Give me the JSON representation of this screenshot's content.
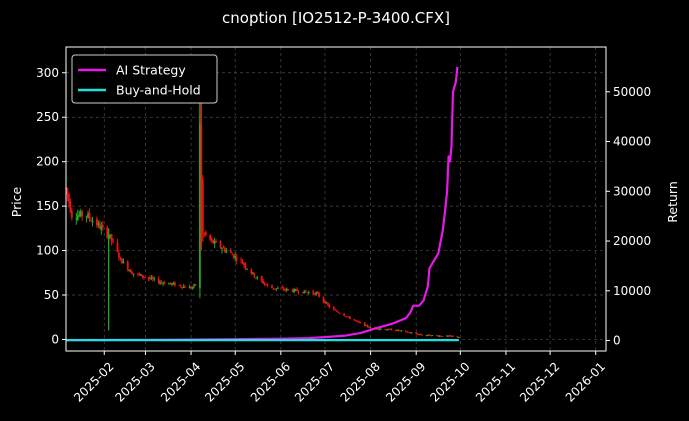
{
  "chart_data": {
    "type": "line",
    "title": "cnoption [IO2512-P-3400.CFX]",
    "ylabel_left": "Price",
    "ylabel_right": "Return",
    "x_ticks": [
      "2025-02",
      "2025-03",
      "2025-04",
      "2025-05",
      "2025-06",
      "2025-07",
      "2025-08",
      "2025-09",
      "2025-10",
      "2025-11",
      "2025-12",
      "2026-01"
    ],
    "x_range": [
      "2025-01-06",
      "2026-01-08"
    ],
    "y_left_ticks": [
      0,
      50,
      100,
      150,
      200,
      250,
      300
    ],
    "y_left_range": [
      -13,
      329
    ],
    "y_right_ticks": [
      0,
      10000,
      20000,
      30000,
      40000,
      50000
    ],
    "y_right_range": [
      -2100,
      59000
    ],
    "grid": true,
    "legend_position": "top-left",
    "series": [
      {
        "name": "AI Strategy",
        "color": "#e619e6",
        "axis": "right",
        "points": [
          [
            "2025-01-06",
            100
          ],
          [
            "2025-02-01",
            120
          ],
          [
            "2025-03-01",
            150
          ],
          [
            "2025-04-01",
            200
          ],
          [
            "2025-05-01",
            280
          ],
          [
            "2025-06-01",
            380
          ],
          [
            "2025-06-20",
            500
          ],
          [
            "2025-07-01",
            700
          ],
          [
            "2025-07-15",
            1000
          ],
          [
            "2025-07-25",
            1500
          ],
          [
            "2025-08-05",
            2500
          ],
          [
            "2025-08-15",
            3300
          ],
          [
            "2025-08-25",
            4500
          ],
          [
            "2025-08-28",
            5600
          ],
          [
            "2025-08-30",
            7000
          ],
          [
            "2025-09-03",
            7000
          ],
          [
            "2025-09-06",
            8000
          ],
          [
            "2025-09-09",
            11000
          ],
          [
            "2025-09-10",
            14500
          ],
          [
            "2025-09-13",
            16000
          ],
          [
            "2025-09-16",
            17500
          ],
          [
            "2025-09-18",
            20500
          ],
          [
            "2025-09-19",
            22000
          ],
          [
            "2025-09-21",
            27000
          ],
          [
            "2025-09-22",
            30000
          ],
          [
            "2025-09-23",
            37000
          ],
          [
            "2025-09-24",
            36000
          ],
          [
            "2025-09-25",
            39000
          ],
          [
            "2025-09-26",
            50000
          ],
          [
            "2025-09-28",
            52000
          ],
          [
            "2025-09-29",
            55000
          ]
        ]
      },
      {
        "name": "Buy-and-Hold",
        "color": "#1fe0e0",
        "axis": "right",
        "points": [
          [
            "2025-01-06",
            100
          ],
          [
            "2025-09-30",
            90
          ]
        ]
      }
    ],
    "candlesticks_note_colors": {
      "up": "#22aa22",
      "down": "#ee1111"
    }
  }
}
